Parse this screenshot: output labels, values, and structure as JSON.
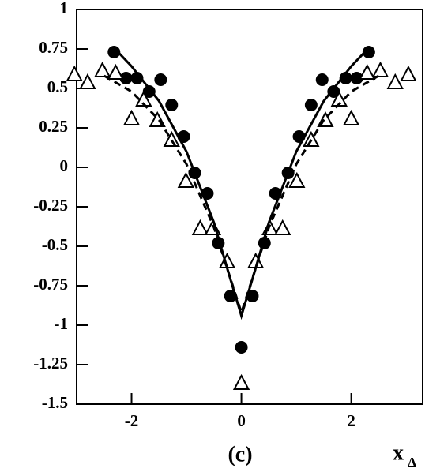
{
  "chart_data": {
    "type": "scatter",
    "annotation": "(c)",
    "xlabel": "x",
    "xlabel_subscript": "Δ",
    "xlim": [
      -3,
      3.3
    ],
    "ylim": [
      -1.5,
      1
    ],
    "xticks": [
      -2,
      0,
      2
    ],
    "yticks": [
      1,
      0.75,
      0.5,
      0.25,
      0,
      -0.25,
      -0.5,
      -0.75,
      -1,
      -1.25,
      -1.5
    ],
    "series": [
      {
        "marker": "circle",
        "color": "#000000",
        "x": [
          -2.32,
          -2.1,
          -1.9,
          -1.68,
          -1.47,
          -1.27,
          -1.05,
          -0.85,
          -0.62,
          -0.42,
          -0.2,
          0,
          0.2,
          0.42,
          0.62,
          0.85,
          1.05,
          1.27,
          1.47,
          1.68,
          1.9,
          2.1,
          2.32
        ],
        "values": [
          0.73,
          0.565,
          0.565,
          0.48,
          0.555,
          0.395,
          0.195,
          -0.035,
          -0.165,
          -0.48,
          -0.815,
          -1.14,
          -0.815,
          -0.48,
          -0.165,
          -0.035,
          0.195,
          0.395,
          0.555,
          0.48,
          0.565,
          0.565,
          0.73
        ]
      },
      {
        "marker": "triangle",
        "color": "#000000",
        "x": [
          -3.04,
          -2.8,
          -2.53,
          -2.29,
          -2.0,
          -1.78,
          -1.53,
          -1.27,
          -1.01,
          -0.75,
          -0.52,
          -0.26,
          0,
          0.26,
          0.52,
          0.75,
          1.01,
          1.27,
          1.53,
          1.78,
          2.0,
          2.29,
          2.53,
          2.8,
          3.04
        ],
        "values": [
          0.585,
          0.535,
          0.61,
          0.595,
          0.305,
          0.425,
          0.295,
          0.17,
          -0.09,
          -0.39,
          -0.39,
          -0.6,
          -1.37,
          -0.6,
          -0.39,
          -0.39,
          -0.09,
          0.17,
          0.295,
          0.425,
          0.305,
          0.595,
          0.61,
          0.535,
          0.585
        ]
      },
      {
        "line": "solid",
        "color": "#000000",
        "x": [
          -2.3,
          -2,
          -1.5,
          -1,
          -0.5,
          -0.25,
          0,
          0.25,
          0.5,
          1,
          1.5,
          2,
          2.3
        ],
        "values": [
          0.75,
          0.64,
          0.42,
          0.1,
          -0.35,
          -0.65,
          -0.94,
          -0.65,
          -0.35,
          0.1,
          0.42,
          0.64,
          0.75
        ]
      },
      {
        "line": "dashed",
        "color": "#000000",
        "x": [
          -2.5,
          -2,
          -1.5,
          -1,
          -0.5,
          -0.25,
          0,
          0.25,
          0.5,
          1,
          1.5,
          2,
          2.5
        ],
        "values": [
          0.58,
          0.48,
          0.3,
          0.02,
          -0.38,
          -0.65,
          -0.92,
          -0.65,
          -0.38,
          0.02,
          0.3,
          0.48,
          0.58
        ]
      }
    ]
  }
}
